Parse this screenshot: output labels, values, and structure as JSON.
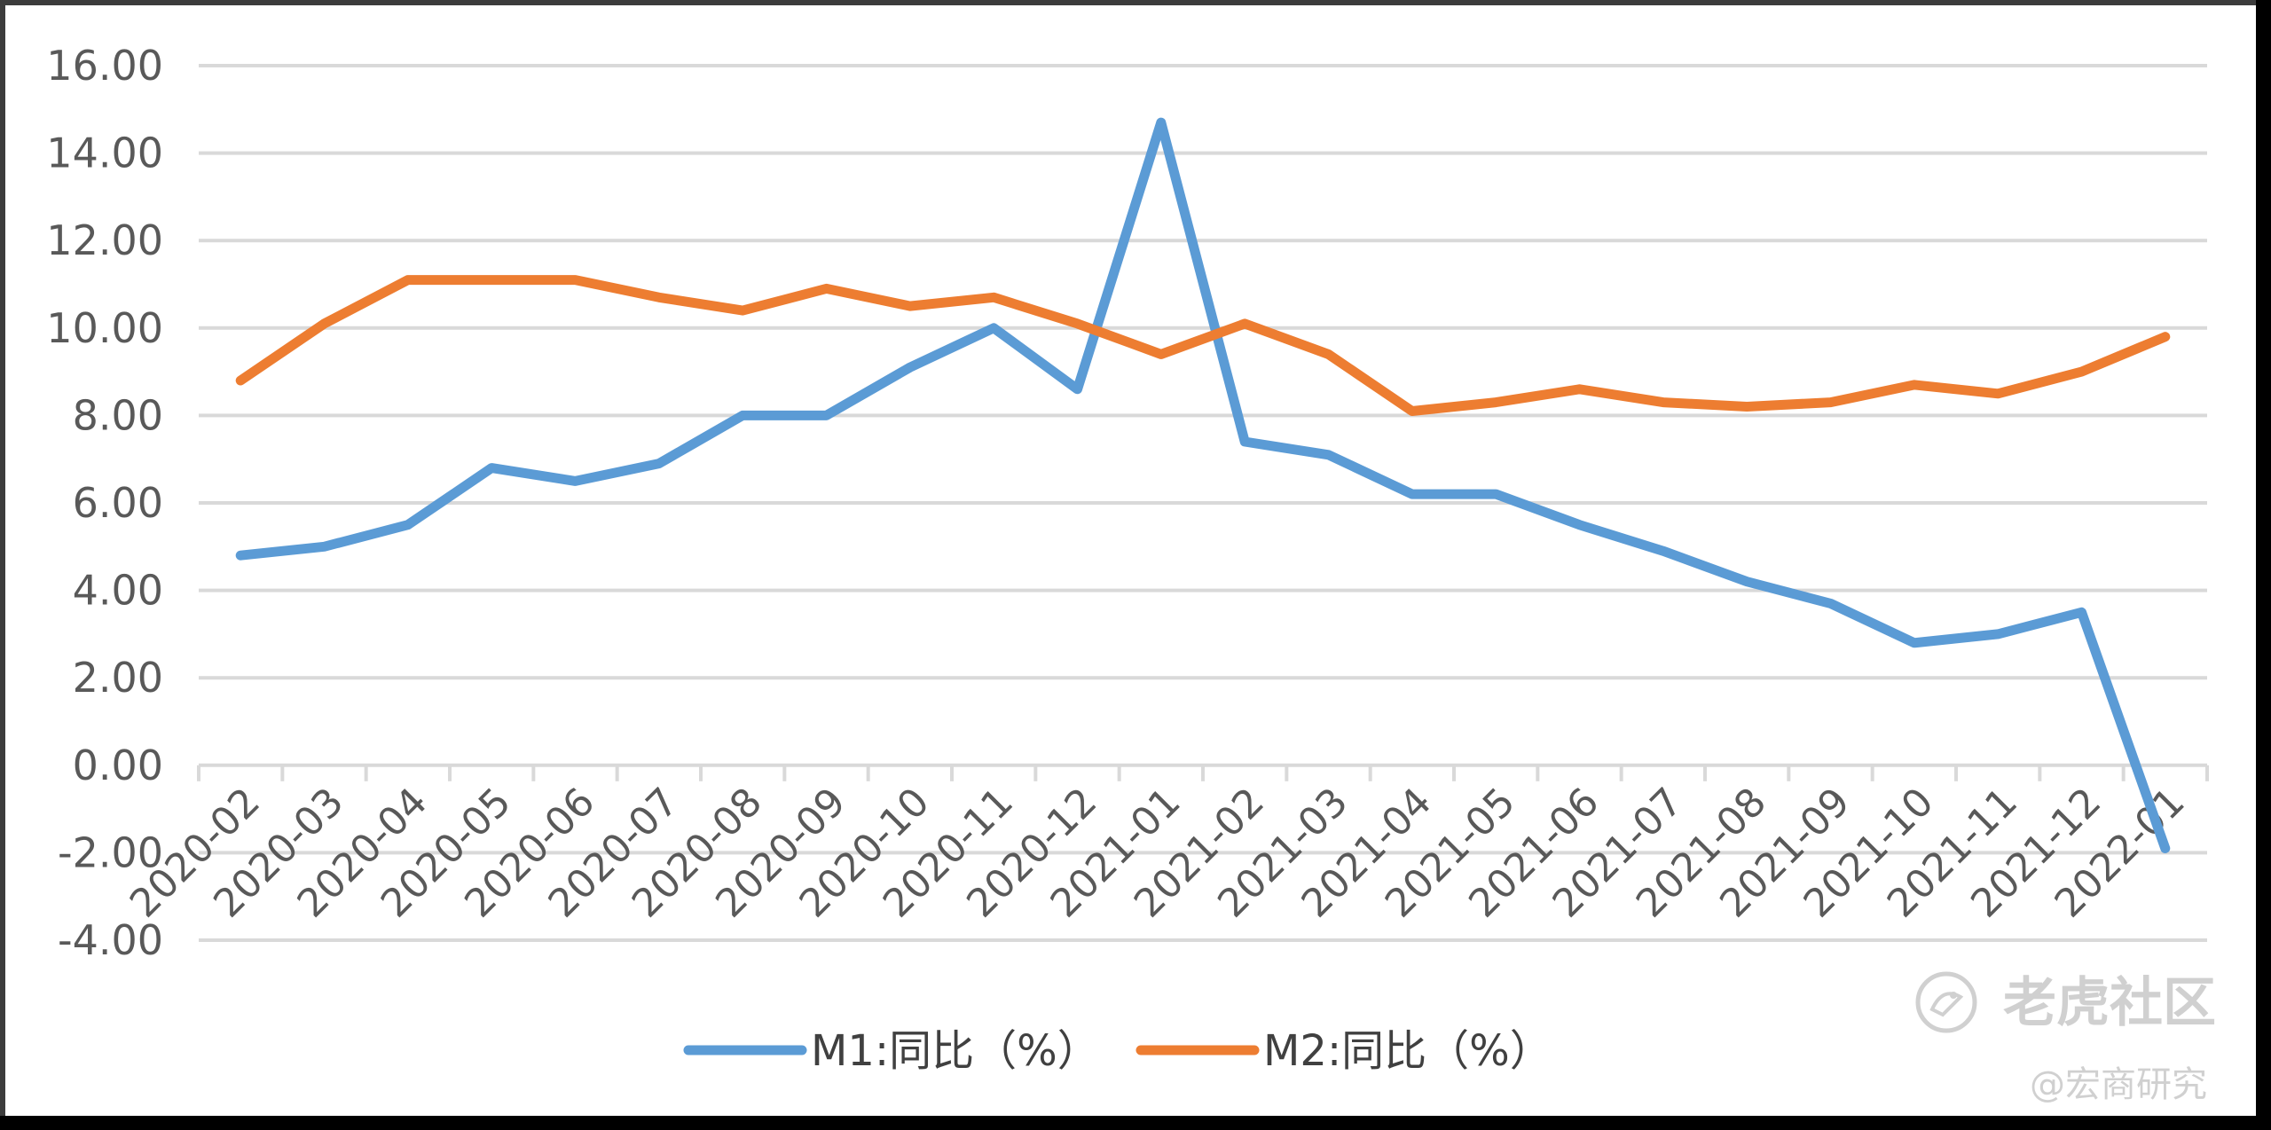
{
  "chart_data": {
    "type": "line",
    "title": "",
    "xlabel": "",
    "ylabel": "",
    "x": [
      "2020-02",
      "2020-03",
      "2020-04",
      "2020-05",
      "2020-06",
      "2020-07",
      "2020-08",
      "2020-09",
      "2020-10",
      "2020-11",
      "2020-12",
      "2021-01",
      "2021-02",
      "2021-03",
      "2021-04",
      "2021-05",
      "2021-06",
      "2021-07",
      "2021-08",
      "2021-09",
      "2021-10",
      "2021-11",
      "2021-12",
      "2022-01"
    ],
    "ylim": [
      -4,
      16
    ],
    "yticks": [
      16,
      14,
      12,
      10,
      8,
      6,
      4,
      2,
      0,
      -2,
      -4
    ],
    "ytick_labels": [
      "16.00",
      "14.00",
      "12.00",
      "10.00",
      "8.00",
      "6.00",
      "4.00",
      "2.00",
      "0.00",
      "-2.00",
      "-4.00"
    ],
    "grid": true,
    "legend_position": "bottom",
    "series": [
      {
        "name": "M1:同比（%）",
        "color": "#5b9bd5",
        "values": [
          4.8,
          5.0,
          5.5,
          6.8,
          6.5,
          6.9,
          8.0,
          8.0,
          9.1,
          10.0,
          8.6,
          14.7,
          7.4,
          7.1,
          6.2,
          6.2,
          5.5,
          4.9,
          4.2,
          3.7,
          2.8,
          3.0,
          3.5,
          -1.9
        ]
      },
      {
        "name": "M2:同比（%）",
        "color": "#ed7d31",
        "values": [
          8.8,
          10.1,
          11.1,
          11.1,
          11.1,
          10.7,
          10.4,
          10.9,
          10.5,
          10.7,
          10.1,
          9.4,
          10.1,
          9.4,
          8.1,
          8.3,
          8.6,
          8.3,
          8.2,
          8.3,
          8.7,
          8.5,
          9.0,
          9.8
        ]
      }
    ]
  },
  "watermark": {
    "brand": "老虎社区",
    "author": "@宏商研究",
    "icon": "tiger-logo-icon"
  }
}
